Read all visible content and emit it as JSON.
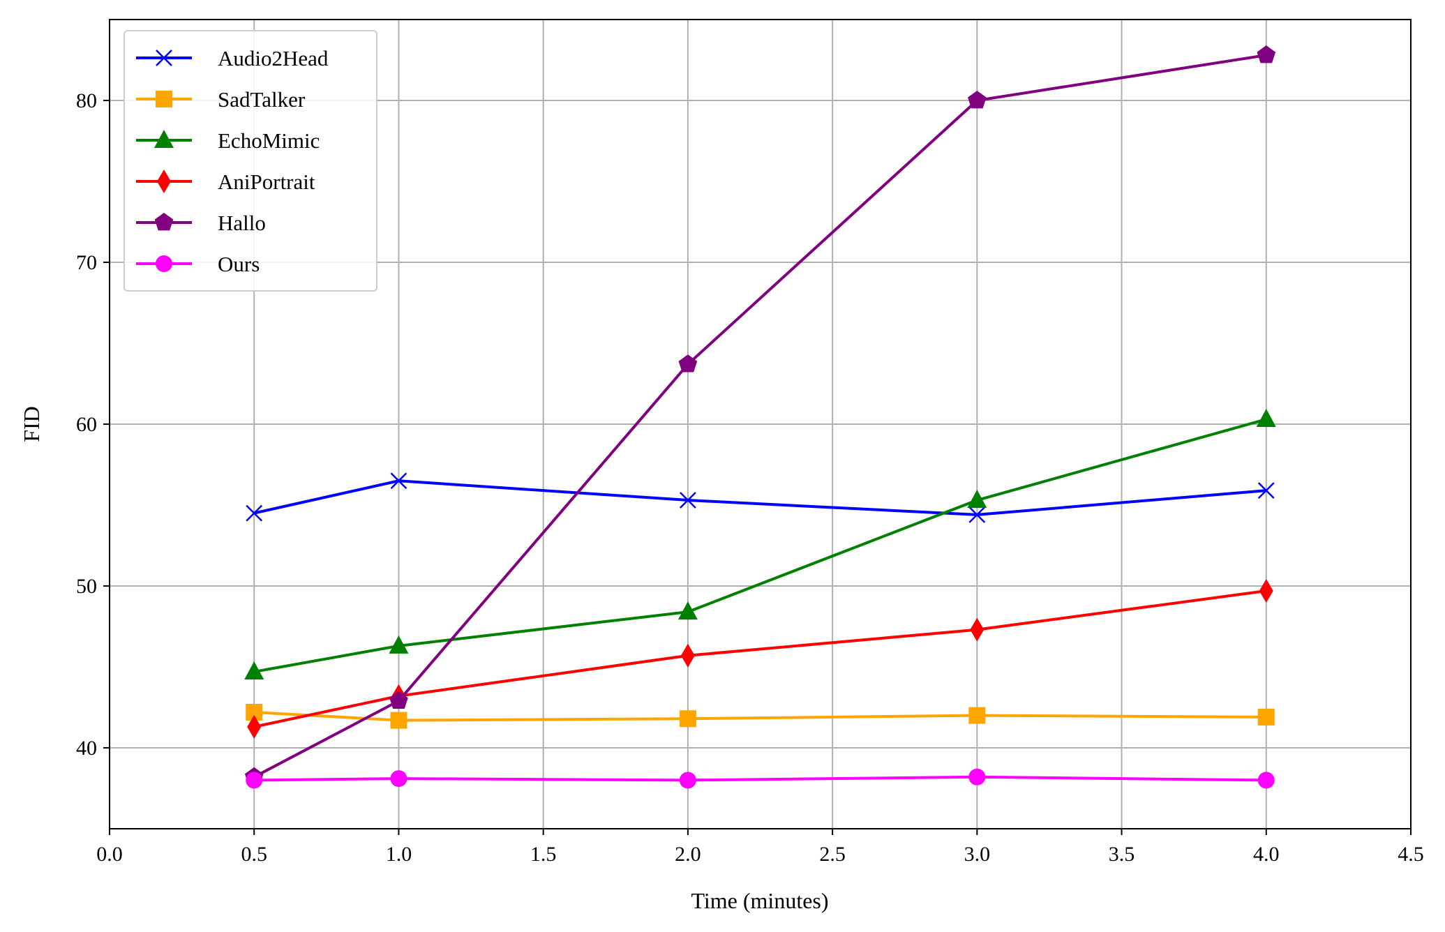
{
  "chart_data": {
    "type": "line",
    "title": "",
    "xlabel": "Time (minutes)",
    "ylabel": "FID",
    "xlim": [
      0,
      4.5
    ],
    "ylim": [
      35,
      85
    ],
    "xticks": [
      0.0,
      0.5,
      1.0,
      1.5,
      2.0,
      2.5,
      3.0,
      3.5,
      4.0,
      4.5
    ],
    "xtick_labels": [
      "0.0",
      "0.5",
      "1.0",
      "1.5",
      "2.0",
      "2.5",
      "3.0",
      "3.5",
      "4.0",
      "4.5"
    ],
    "yticks": [
      40,
      50,
      60,
      70,
      80
    ],
    "ytick_labels": [
      "40",
      "50",
      "60",
      "70",
      "80"
    ],
    "grid": true,
    "legend_position": "top-left",
    "x": [
      0.5,
      1.0,
      2.0,
      3.0,
      4.0
    ],
    "series": [
      {
        "name": "Audio2Head",
        "color": "#0000ff",
        "marker": "x",
        "values": [
          54.5,
          56.5,
          55.3,
          54.4,
          55.9
        ]
      },
      {
        "name": "SadTalker",
        "color": "#ffa500",
        "marker": "square",
        "values": [
          42.2,
          41.7,
          41.8,
          42.0,
          41.9
        ]
      },
      {
        "name": "EchoMimic",
        "color": "#008000",
        "marker": "triangle",
        "values": [
          44.7,
          46.3,
          48.4,
          55.3,
          60.3
        ]
      },
      {
        "name": "AniPortrait",
        "color": "#ff0000",
        "marker": "diamond",
        "values": [
          41.3,
          43.2,
          45.7,
          47.3,
          49.7
        ]
      },
      {
        "name": "Hallo",
        "color": "#800080",
        "marker": "pentagon",
        "values": [
          38.2,
          42.9,
          63.7,
          80.0,
          82.8
        ]
      },
      {
        "name": "Ours",
        "color": "#ff00ff",
        "marker": "circle",
        "values": [
          38.0,
          38.1,
          38.0,
          38.2,
          38.0
        ]
      }
    ]
  }
}
